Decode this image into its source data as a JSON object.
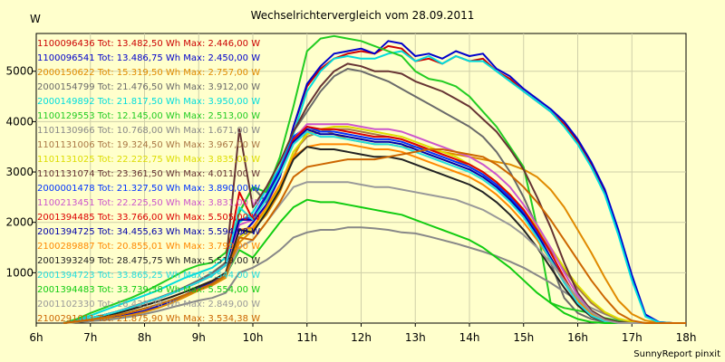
{
  "chart_data": {
    "type": "line",
    "title": "Wechselrichtervergleich vom 28.09.2011",
    "ylabel": "W",
    "credit": "SunnyReport pinxit",
    "x_ticks": [
      "6h",
      "7h",
      "8h",
      "9h",
      "10h",
      "11h",
      "12h",
      "13h",
      "14h",
      "15h",
      "16h",
      "17h",
      "18h"
    ],
    "x_range": [
      6,
      18
    ],
    "y_ticks": [
      1000,
      2000,
      3000,
      4000,
      5000
    ],
    "y_range": [
      0,
      5750
    ],
    "grid": true,
    "x": [
      6.5,
      6.75,
      7,
      7.25,
      7.5,
      7.75,
      8,
      8.25,
      8.5,
      8.75,
      9,
      9.25,
      9.5,
      9.75,
      10,
      10.25,
      10.5,
      10.75,
      11,
      11.25,
      11.5,
      11.75,
      12,
      12.25,
      12.5,
      12.75,
      13,
      13.25,
      13.5,
      13.75,
      14,
      14.25,
      14.5,
      14.75,
      15,
      15.25,
      15.5,
      15.75,
      16,
      16.25,
      16.5,
      16.75,
      17,
      17.25,
      17.5,
      17.75,
      18
    ],
    "series": [
      {
        "name": "1100096436 Tot: 13.482,50 Wh Max: 2.446,00 W",
        "color": "#cc0000",
        "values": [
          0,
          30,
          60,
          90,
          120,
          180,
          240,
          330,
          440,
          560,
          700,
          800,
          950,
          1700,
          2000,
          2350,
          2900,
          3900,
          4700,
          5050,
          5250,
          5350,
          5400,
          5350,
          5500,
          5450,
          5200,
          5250,
          5150,
          5300,
          5200,
          5250,
          5000,
          4850,
          4600,
          4400,
          4200,
          3950,
          3600,
          3150,
          2600,
          1800,
          900,
          150,
          20,
          0,
          0
        ]
      },
      {
        "name": "1100096541 Tot: 13.486,75 Wh Max: 2.450,00 W",
        "color": "#0000cc",
        "values": [
          0,
          30,
          60,
          90,
          120,
          180,
          240,
          330,
          440,
          560,
          700,
          800,
          950,
          1700,
          2000,
          2350,
          2900,
          3900,
          4750,
          5100,
          5350,
          5400,
          5450,
          5350,
          5600,
          5550,
          5300,
          5350,
          5250,
          5400,
          5300,
          5350,
          5050,
          4900,
          4650,
          4450,
          4250,
          4000,
          3650,
          3200,
          2650,
          1850,
          950,
          170,
          20,
          0,
          0
        ]
      },
      {
        "name": "2000150622 Tot: 15.319,50 Wh Max: 2.757,00 W",
        "color": "#e08a00",
        "values": [
          0,
          20,
          50,
          80,
          110,
          160,
          220,
          300,
          400,
          520,
          650,
          750,
          900,
          1600,
          1850,
          2150,
          2600,
          3300,
          3800,
          3850,
          3750,
          3650,
          3600,
          3550,
          3550,
          3500,
          3500,
          3450,
          3400,
          3350,
          3300,
          3250,
          3200,
          3150,
          3050,
          2900,
          2650,
          2300,
          1850,
          1400,
          900,
          450,
          180,
          50,
          10,
          0,
          0
        ]
      },
      {
        "name": "2000154799 Tot: 21.476,50 Wh Max: 3.912,00 W",
        "color": "#6a6a6a",
        "values": [
          0,
          40,
          100,
          160,
          230,
          320,
          410,
          500,
          600,
          720,
          850,
          1000,
          1200,
          2200,
          2700,
          2400,
          3000,
          3800,
          4200,
          4600,
          4900,
          5050,
          5000,
          4900,
          4800,
          4650,
          4500,
          4350,
          4200,
          4050,
          3900,
          3700,
          3400,
          3000,
          2500,
          1900,
          1200,
          500,
          200,
          80,
          20,
          0,
          0,
          0,
          0,
          0,
          0
        ]
      },
      {
        "name": "2000149892 Tot: 21.817,50 Wh Max: 3.950,00 W",
        "color": "#00dddd",
        "values": [
          0,
          60,
          150,
          250,
          350,
          450,
          550,
          650,
          780,
          900,
          1000,
          1100,
          1300,
          2000,
          2200,
          2650,
          3100,
          3750,
          4600,
          5000,
          5250,
          5300,
          5250,
          5250,
          5350,
          5400,
          5200,
          5300,
          5150,
          5300,
          5200,
          5200,
          5000,
          4800,
          4600,
          4400,
          4200,
          3900,
          3550,
          3100,
          2550,
          1750,
          850,
          130,
          15,
          0,
          0
        ]
      },
      {
        "name": "1100129553 Tot: 12.145,00 Wh Max: 2.513,00 W",
        "color": "#22cc22",
        "values": [
          0,
          80,
          200,
          300,
          400,
          500,
          620,
          760,
          900,
          1050,
          1150,
          1200,
          1400,
          2200,
          2700,
          2600,
          3300,
          4300,
          5400,
          5650,
          5700,
          5650,
          5600,
          5500,
          5400,
          5300,
          5000,
          4850,
          4800,
          4700,
          4500,
          4200,
          3900,
          3500,
          3100,
          1900,
          400,
          300,
          250,
          200,
          100,
          50,
          0,
          0,
          0,
          0,
          0
        ]
      },
      {
        "name": "1101130966 Tot: 10.768,00 Wh Max: 1.671,00 W",
        "color": "#888888",
        "values": [
          0,
          20,
          40,
          60,
          90,
          130,
          180,
          240,
          310,
          380,
          450,
          500,
          600,
          1000,
          1100,
          1250,
          1450,
          1700,
          1800,
          1850,
          1850,
          1900,
          1900,
          1880,
          1850,
          1800,
          1780,
          1720,
          1650,
          1580,
          1500,
          1420,
          1330,
          1220,
          1100,
          950,
          800,
          620,
          450,
          300,
          180,
          80,
          20,
          0,
          0,
          0,
          0
        ]
      },
      {
        "name": "1101131006 Tot: 19.324,50 Wh Max: 3.967,00 W",
        "color": "#aa7744",
        "values": [
          0,
          30,
          70,
          110,
          160,
          220,
          290,
          370,
          460,
          560,
          670,
          780,
          950,
          1700,
          1900,
          2250,
          2700,
          3400,
          3700,
          3800,
          3850,
          3850,
          3800,
          3750,
          3700,
          3650,
          3550,
          3450,
          3350,
          3250,
          3100,
          2950,
          2750,
          2500,
          2200,
          1850,
          1450,
          1050,
          700,
          400,
          200,
          80,
          20,
          0,
          0,
          0,
          0
        ]
      },
      {
        "name": "1101131025 Tot: 22.222,75 Wh Max: 3.835,00 W",
        "color": "#dddd00",
        "values": [
          0,
          30,
          70,
          110,
          160,
          220,
          290,
          370,
          460,
          560,
          670,
          780,
          950,
          1700,
          1900,
          2250,
          2700,
          3400,
          3750,
          3850,
          3900,
          3900,
          3850,
          3800,
          3750,
          3700,
          3600,
          3500,
          3400,
          3300,
          3150,
          3000,
          2800,
          2550,
          2250,
          1900,
          1500,
          1100,
          750,
          450,
          220,
          90,
          25,
          0,
          0,
          0,
          0
        ]
      },
      {
        "name": "1101131074 Tot: 23.361,50 Wh Max: 4.011,00 W",
        "color": "#663333",
        "values": [
          0,
          40,
          100,
          160,
          230,
          310,
          400,
          490,
          590,
          700,
          820,
          950,
          1150,
          3850,
          2300,
          2700,
          3200,
          3800,
          4300,
          4700,
          5000,
          5150,
          5100,
          5000,
          5000,
          4950,
          4800,
          4700,
          4600,
          4450,
          4300,
          4050,
          3800,
          3450,
          3050,
          2500,
          1900,
          1200,
          600,
          250,
          90,
          20,
          0,
          0,
          0,
          0,
          0
        ]
      },
      {
        "name": "2000001478 Tot: 21.327,50 Wh Max: 3.890,00 W",
        "color": "#0033ff",
        "values": [
          0,
          40,
          100,
          160,
          230,
          310,
          400,
          490,
          590,
          700,
          820,
          950,
          1150,
          2050,
          2100,
          2550,
          3050,
          3700,
          3900,
          3800,
          3800,
          3750,
          3700,
          3650,
          3650,
          3600,
          3500,
          3400,
          3300,
          3200,
          3100,
          2950,
          2750,
          2500,
          2200,
          1800,
          1300,
          800,
          400,
          150,
          40,
          0,
          0,
          0,
          0,
          0,
          0
        ]
      },
      {
        "name": "1100213451 Tot: 22.225,50 Wh Max: 3.831,00 W",
        "color": "#cc55cc",
        "values": [
          0,
          40,
          100,
          160,
          230,
          310,
          400,
          490,
          590,
          700,
          820,
          950,
          1150,
          1950,
          2050,
          2500,
          3000,
          3650,
          3950,
          3950,
          3950,
          3950,
          3900,
          3850,
          3850,
          3800,
          3700,
          3600,
          3500,
          3400,
          3300,
          3150,
          2950,
          2700,
          2350,
          1950,
          1500,
          1000,
          550,
          220,
          60,
          0,
          0,
          0,
          0,
          0,
          0
        ]
      },
      {
        "name": "2001394485 Tot: 33.766,00 Wh Max: 5.505,00 W",
        "color": "#dd0000",
        "values": [
          0,
          40,
          100,
          160,
          230,
          310,
          400,
          490,
          590,
          700,
          820,
          950,
          1150,
          2600,
          2050,
          2500,
          3000,
          3650,
          3900,
          3850,
          3850,
          3800,
          3750,
          3700,
          3700,
          3650,
          3550,
          3450,
          3350,
          3250,
          3150,
          3000,
          2800,
          2550,
          2250,
          1850,
          1400,
          900,
          450,
          170,
          40,
          0,
          0,
          0,
          0,
          0,
          0
        ]
      },
      {
        "name": "2001394725 Tot: 34.455,63 Wh Max: 5.594,00 W",
        "color": "#0000aa",
        "values": [
          0,
          40,
          100,
          160,
          230,
          310,
          400,
          490,
          590,
          700,
          820,
          950,
          1150,
          2050,
          2050,
          2500,
          3000,
          3600,
          3850,
          3750,
          3750,
          3700,
          3650,
          3600,
          3600,
          3550,
          3450,
          3350,
          3250,
          3150,
          3050,
          2900,
          2700,
          2450,
          2150,
          1750,
          1300,
          850,
          430,
          160,
          40,
          0,
          0,
          0,
          0,
          0,
          0
        ]
      },
      {
        "name": "2100289887 Tot: 20.855,01 Wh Max: 3.799,00 W",
        "color": "#ff8800",
        "values": [
          0,
          35,
          85,
          140,
          200,
          270,
          350,
          430,
          520,
          620,
          730,
          840,
          1000,
          1850,
          1900,
          2300,
          2750,
          3300,
          3500,
          3550,
          3550,
          3550,
          3500,
          3450,
          3450,
          3400,
          3300,
          3200,
          3100,
          3000,
          2900,
          2750,
          2550,
          2300,
          2000,
          1650,
          1250,
          850,
          450,
          180,
          50,
          0,
          0,
          0,
          0,
          0,
          0
        ]
      },
      {
        "name": "2001393249 Tot: 28.475,75 Wh Max: 5.519,00 W",
        "color": "#222222",
        "values": [
          0,
          35,
          85,
          140,
          200,
          270,
          350,
          430,
          520,
          620,
          730,
          840,
          1000,
          1850,
          1800,
          2200,
          2650,
          3250,
          3500,
          3450,
          3450,
          3400,
          3350,
          3300,
          3300,
          3250,
          3150,
          3050,
          2950,
          2850,
          2750,
          2600,
          2400,
          2150,
          1850,
          1500,
          1100,
          700,
          350,
          130,
          30,
          0,
          0,
          0,
          0,
          0,
          0
        ]
      },
      {
        "name": "2001394723 Tot: 33.865,25 Wh Max: 5.544,00 W",
        "color": "#22dddd",
        "values": [
          0,
          40,
          100,
          160,
          230,
          310,
          400,
          490,
          590,
          700,
          820,
          950,
          1150,
          2300,
          2050,
          2450,
          2950,
          3550,
          3800,
          3700,
          3700,
          3650,
          3600,
          3550,
          3550,
          3500,
          3400,
          3300,
          3200,
          3100,
          3000,
          2850,
          2650,
          2400,
          2100,
          1700,
          1250,
          800,
          400,
          150,
          35,
          0,
          0,
          0,
          0,
          0,
          0
        ]
      },
      {
        "name": "2001394483 Tot: 33.739,38 Wh Max: 5.554,00 W",
        "color": "#11cc11",
        "values": [
          0,
          30,
          70,
          110,
          160,
          220,
          290,
          370,
          460,
          560,
          670,
          780,
          950,
          1450,
          1300,
          1650,
          2000,
          2300,
          2450,
          2400,
          2400,
          2350,
          2300,
          2250,
          2200,
          2150,
          2050,
          1950,
          1850,
          1750,
          1650,
          1500,
          1300,
          1100,
          850,
          600,
          400,
          200,
          80,
          20,
          0,
          0,
          0,
          0,
          0,
          0,
          0
        ]
      },
      {
        "name": "2001102330 Tot: 16.433,38 Wh Max: 2.849,00 W",
        "color": "#999999",
        "values": [
          0,
          30,
          70,
          110,
          160,
          220,
          290,
          370,
          460,
          560,
          670,
          780,
          950,
          1500,
          1650,
          2000,
          2350,
          2700,
          2800,
          2800,
          2800,
          2800,
          2750,
          2700,
          2700,
          2650,
          2600,
          2550,
          2500,
          2450,
          2350,
          2250,
          2100,
          1950,
          1750,
          1500,
          1200,
          850,
          500,
          220,
          60,
          0,
          0,
          0,
          0,
          0,
          0
        ]
      },
      {
        "name": "2100291011 Tot: 21.875,90 Wh Max: 3.534,38 W",
        "color": "#cc6600",
        "values": [
          0,
          30,
          70,
          110,
          160,
          220,
          290,
          370,
          460,
          560,
          670,
          780,
          950,
          1700,
          1650,
          2000,
          2400,
          2900,
          3100,
          3150,
          3200,
          3250,
          3250,
          3250,
          3300,
          3350,
          3400,
          3450,
          3450,
          3400,
          3350,
          3300,
          3150,
          2950,
          2700,
          2400,
          2050,
          1650,
          1250,
          850,
          500,
          200,
          50,
          0,
          0,
          0,
          0
        ]
      }
    ]
  }
}
